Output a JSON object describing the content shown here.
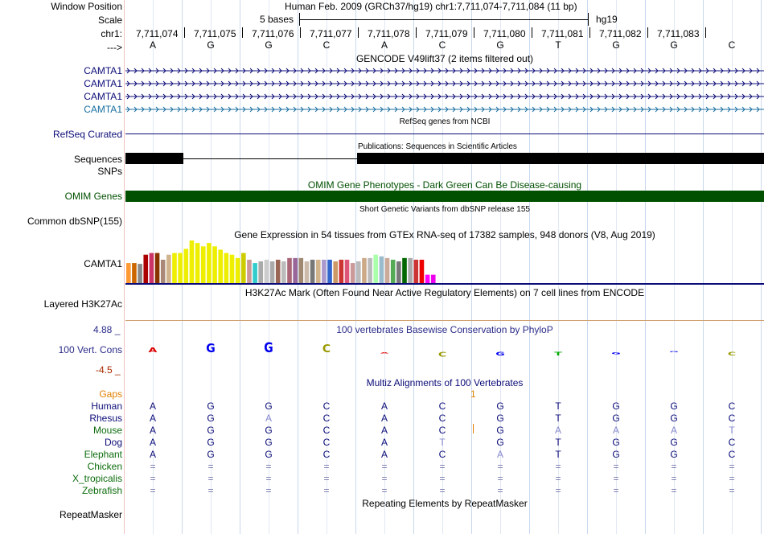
{
  "header": {
    "window_position_label": "Window Position",
    "scale_label": "Scale",
    "chrom_label": "chr1:",
    "strand_label": "--->",
    "assembly_position": "Human Feb. 2009 (GRCh37/hg19)   chr1:7,711,074-7,711,084 (11 bp)",
    "scale_text": "5 bases",
    "scale_db": "hg19"
  },
  "coordinates": [
    "7,711,074",
    "7,711,075",
    "7,711,076",
    "7,711,077",
    "7,711,078",
    "7,711,079",
    "7,711,080",
    "7,711,081",
    "7,711,082",
    "7,711,083"
  ],
  "bases": [
    "A",
    "G",
    "G",
    "C",
    "A",
    "C",
    "G",
    "T",
    "G",
    "G",
    "C"
  ],
  "base_colors": {
    "A": "#0000c0",
    "C": "#0000c0",
    "G": "#0000c0",
    "T": "#0000c0"
  },
  "gencode": {
    "title": "GENCODE V49lift37 (2 items filtered out)",
    "labels": [
      "CAMTA1",
      "CAMTA1",
      "CAMTA1",
      "CAMTA1"
    ],
    "colors": [
      "#0c0c78",
      "#0c0c78",
      "#0c0c78",
      "#1a6fa0"
    ]
  },
  "refseq": {
    "label": "RefSeq Curated",
    "title": "RefSeq genes from NCBI",
    "color": "#0c0c78"
  },
  "publications": {
    "title": "Publications: Sequences in Scientific Articles",
    "label_sequences": "Sequences",
    "label_snps": "SNPs"
  },
  "omim": {
    "label": "OMIM Genes",
    "title": "OMIM Gene Phenotypes - Dark Green Can Be Disease-causing",
    "color": "#005000"
  },
  "dbsnp": {
    "label": "Common dbSNP(155)",
    "title": "Short Genetic Variants from dbSNP release 155"
  },
  "gtex": {
    "title": "Gene Expression in 54 tissues from GTEx RNA-seq of 17382 samples, 948 donors (V8, Aug 2019)",
    "label": "CAMTA1",
    "values": [
      24,
      24,
      23,
      34,
      36,
      36,
      28,
      34,
      36,
      36,
      41,
      51,
      48,
      44,
      48,
      44,
      40,
      36,
      34,
      30,
      36,
      28,
      24,
      26,
      28,
      26,
      28,
      26,
      30,
      30,
      30,
      26,
      28,
      28,
      28,
      28,
      26,
      28,
      28,
      24,
      26,
      30,
      30,
      34,
      32,
      30,
      28,
      26,
      30,
      30,
      28,
      28,
      10,
      10
    ],
    "colors": [
      "#ff9933",
      "#cc6600",
      "#888888",
      "#aa0000",
      "#cc3366",
      "#883300",
      "#aa8877",
      "#d2b48c",
      "#eeee00",
      "#eeee00",
      "#eeee00",
      "#eeee00",
      "#eeee00",
      "#eeee00",
      "#eeee00",
      "#eeee00",
      "#eeee00",
      "#eeee00",
      "#eeee00",
      "#eeee00",
      "#cccc00",
      "#cc9999",
      "#33cccc",
      "#aaaaaa",
      "#cccccc",
      "#aaaaaa",
      "#996655",
      "#bbbbbb",
      "#aa6677",
      "#996699",
      "#a08870",
      "#ccbbaa",
      "#777777",
      "#d2b48c",
      "#aa99cc",
      "#3366cc",
      "#cc9966",
      "#cc3333",
      "#dd5577",
      "#cc9999",
      "#bbbbbb",
      "#ccaa88",
      "#bbbbbb",
      "#aaffaa",
      "#99bbcc",
      "#ccaa99",
      "#55aa55",
      "#777777",
      "#006600",
      "#aaaaaa",
      "#cc3333",
      "#ee0000",
      "#ff00ff",
      "#ee00ee"
    ]
  },
  "h3k27ac": {
    "label": "Layered H3K27Ac",
    "title": "H3K27Ac Mark (Often Found Near Active Regulatory Elements) on 7 cell lines from ENCODE"
  },
  "phylop": {
    "label": "100 Vert. Cons",
    "max_label": "4.88 _",
    "min_label": "-4.5 _",
    "title": "100 vertebrates Basewise Conservation by PhyloP",
    "scores": [
      0.9,
      1.8,
      2.0,
      1.6,
      -0.2,
      -0.9,
      -0.7,
      -0.7,
      -0.4,
      0.0,
      -0.7
    ]
  },
  "multiz": {
    "title": "Multiz Alignments of 100 Vertebrates",
    "gaps_label": "Gaps",
    "gaps_mark": "1",
    "species": [
      {
        "name": "Human",
        "color": "#0c0c78",
        "seq": [
          "A",
          "G",
          "G",
          "C",
          "A",
          "C",
          "G",
          "T",
          "G",
          "G",
          "C"
        ]
      },
      {
        "name": "Rhesus",
        "color": "#0c0c78",
        "seq": [
          "A",
          "G",
          "A",
          "C",
          "A",
          "C",
          "G",
          "T",
          "G",
          "G",
          "C"
        ]
      },
      {
        "name": "Mouse",
        "color": "#0c6c0c",
        "seq": [
          "A",
          "G",
          "G",
          "C",
          "A",
          "C",
          "G",
          "A",
          "A",
          "A",
          "T"
        ]
      },
      {
        "name": "Dog",
        "color": "#0c0c78",
        "seq": [
          "A",
          "G",
          "G",
          "C",
          "A",
          "T",
          "G",
          "T",
          "G",
          "G",
          "C"
        ]
      },
      {
        "name": "Elephant",
        "color": "#0c6c0c",
        "seq": [
          "A",
          "G",
          "G",
          "C",
          "A",
          "C",
          "A",
          "T",
          "G",
          "G",
          "C"
        ]
      },
      {
        "name": "Chicken",
        "color": "#0c6c0c",
        "seq": [
          "=",
          "=",
          "=",
          "=",
          "=",
          "=",
          "=",
          "=",
          "=",
          "=",
          "="
        ]
      },
      {
        "name": "X_tropicalis",
        "color": "#0c6c0c",
        "seq": [
          "=",
          "=",
          "=",
          "=",
          "=",
          "=",
          "=",
          "=",
          "=",
          "=",
          "="
        ]
      },
      {
        "name": "Zebrafish",
        "color": "#0c6c0c",
        "seq": [
          "=",
          "=",
          "=",
          "=",
          "=",
          "=",
          "=",
          "=",
          "=",
          "=",
          "="
        ]
      }
    ],
    "mismatch_color": "#8888cc"
  },
  "repeatmasker": {
    "label": "RepeatMasker",
    "title": "Repeating Elements by RepeatMasker"
  }
}
